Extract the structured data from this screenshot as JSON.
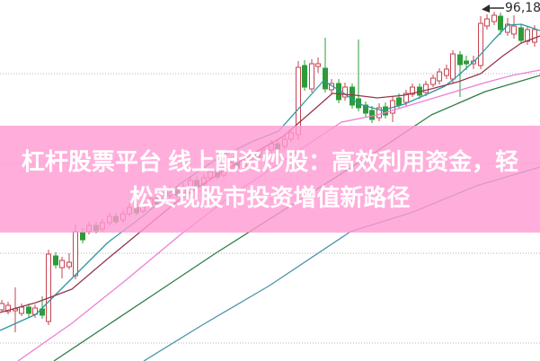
{
  "banner": {
    "full_title": "杠杆股票平台 线上配资炒股：高效利用资金，轻松实现股市投资增值新路径",
    "line1": "杠杆股票平台 线上配资炒股：高效利用资金，轻",
    "line2": "松实现股市投资增值新路径",
    "overlay_rgba": "rgba(255,154,210,0.8)",
    "text_color": "#ffffff"
  },
  "chart_data": {
    "type": "candlestick",
    "price_label": "96,18",
    "price_label_color": "#2b2b2b",
    "grid_color": "#b5b5b5",
    "gridline_prices": [
      90,
      80,
      70,
      60
    ],
    "legend_position": "none",
    "axes_visible": false,
    "candles": {
      "up_color": "#c5434f",
      "down_color": "#2d9b38",
      "values": [
        [
          2,
          63.7,
          64.8,
          63.4,
          64.4
        ],
        [
          9,
          63.5,
          64.6,
          63.2,
          64.2
        ],
        [
          17,
          63.6,
          66.2,
          61.2,
          63.8
        ],
        [
          24,
          63.3,
          64.4,
          63.0,
          64.0
        ],
        [
          32,
          64.0,
          64.4,
          62.9,
          63.3
        ],
        [
          39,
          63.2,
          64.3,
          62.8,
          63.9
        ],
        [
          47,
          63.8,
          65.2,
          62.7,
          63.1
        ],
        [
          54,
          62.4,
          70.4,
          62.0,
          69.9
        ],
        [
          62,
          69.7,
          70.1,
          68.3,
          68.7
        ],
        [
          69,
          68.4,
          69.6,
          67.2,
          69.2
        ],
        [
          77,
          68.5,
          70.0,
          68.2,
          69.0
        ],
        [
          84,
          67.5,
          73.2,
          67.1,
          72.4
        ],
        [
          92,
          72.3,
          72.8,
          71.1,
          71.5
        ],
        [
          99,
          72.4,
          73.5,
          72.1,
          73.1
        ],
        [
          107,
          73.1,
          73.5,
          72.2,
          72.5
        ],
        [
          114,
          72.7,
          73.8,
          72.4,
          73.4
        ],
        [
          122,
          73.4,
          74.5,
          73.1,
          74.1
        ],
        [
          129,
          74.1,
          74.5,
          73.2,
          73.5
        ],
        [
          137,
          73.7,
          74.8,
          73.4,
          74.4
        ],
        [
          144,
          74.4,
          75.5,
          74.1,
          75.1
        ],
        [
          152,
          75.1,
          75.5,
          74.2,
          74.5
        ],
        [
          159,
          74.7,
          75.8,
          74.4,
          75.4
        ],
        [
          167,
          75.4,
          76.5,
          75.1,
          76.1
        ],
        [
          174,
          76.1,
          76.5,
          75.2,
          75.5
        ],
        [
          182,
          75.7,
          76.8,
          75.4,
          76.4
        ],
        [
          189,
          76.4,
          77.5,
          76.1,
          77.1
        ],
        [
          197,
          77.1,
          77.5,
          76.2,
          76.5
        ],
        [
          204,
          76.7,
          77.8,
          76.4,
          77.4
        ],
        [
          212,
          77.4,
          78.5,
          77.1,
          78.1
        ],
        [
          219,
          78.1,
          78.5,
          77.2,
          77.5
        ],
        [
          227,
          77.7,
          78.8,
          77.4,
          78.4
        ],
        [
          234,
          78.4,
          79.5,
          78.1,
          79.1
        ],
        [
          242,
          79.1,
          79.5,
          78.2,
          78.5
        ],
        [
          249,
          78.7,
          79.8,
          78.4,
          79.4
        ],
        [
          257,
          79.4,
          80.5,
          79.1,
          80.1
        ],
        [
          264,
          80.1,
          80.5,
          79.2,
          79.5
        ],
        [
          272,
          79.7,
          80.8,
          79.4,
          80.4
        ],
        [
          279,
          80.4,
          81.5,
          80.1,
          81.1
        ],
        [
          287,
          81.1,
          81.5,
          80.2,
          80.5
        ],
        [
          294,
          80.7,
          81.9,
          80.4,
          81.5
        ],
        [
          302,
          81.5,
          82.6,
          81.2,
          82.2
        ],
        [
          309,
          82.2,
          82.6,
          81.3,
          81.6
        ],
        [
          317,
          81.9,
          83.1,
          81.6,
          82.7
        ],
        [
          324,
          82.7,
          83.8,
          82.4,
          83.4
        ],
        [
          332,
          83.2,
          91.4,
          82.6,
          90.7
        ],
        [
          339,
          90.9,
          91.5,
          88.1,
          88.5
        ],
        [
          347,
          88.3,
          91.6,
          87.9,
          91.1
        ],
        [
          354,
          90.8,
          91.8,
          90.1,
          91.1
        ],
        [
          362,
          90.6,
          94.0,
          87.9,
          88.3
        ],
        [
          369,
          88.2,
          89.4,
          87.8,
          88.9
        ],
        [
          377,
          88.9,
          89.4,
          86.7,
          87.1
        ],
        [
          384,
          87.4,
          89.0,
          87.0,
          88.5
        ],
        [
          392,
          88.5,
          88.9,
          86.1,
          86.5
        ],
        [
          399,
          87.2,
          93.8,
          85.8,
          86.2
        ],
        [
          407,
          86.5,
          86.9,
          85.2,
          85.6
        ],
        [
          414,
          85.9,
          86.4,
          84.5,
          84.9
        ],
        [
          422,
          85.1,
          86.7,
          84.7,
          86.2
        ],
        [
          429,
          86.3,
          86.8,
          85.0,
          85.4
        ],
        [
          437,
          85.6,
          87.5,
          84.6,
          87.0
        ],
        [
          444,
          87.3,
          87.8,
          86.1,
          86.5
        ],
        [
          452,
          86.8,
          88.2,
          86.4,
          87.8
        ],
        [
          459,
          87.7,
          88.9,
          87.4,
          88.5
        ],
        [
          467,
          88.5,
          88.9,
          87.2,
          87.6
        ],
        [
          474,
          87.9,
          89.2,
          87.5,
          88.8
        ],
        [
          482,
          88.8,
          89.9,
          88.5,
          89.5
        ],
        [
          489,
          89.2,
          90.6,
          88.8,
          90.2
        ],
        [
          497,
          89.8,
          91.0,
          89.4,
          90.5
        ],
        [
          504,
          89.4,
          92.6,
          89.0,
          92.2
        ],
        [
          512,
          92.1,
          92.5,
          87.4,
          91.0
        ],
        [
          519,
          91.4,
          92.0,
          90.4,
          91.1
        ],
        [
          527,
          91.1,
          92.0,
          90.5,
          91.4
        ],
        [
          535,
          90.9,
          96.4,
          90.5,
          95.6
        ],
        [
          542,
          95.3,
          96.6,
          94.9,
          96.1
        ],
        [
          550,
          95.8,
          96.9,
          95.4,
          96.5
        ],
        [
          557,
          96.4,
          96.8,
          94.3,
          94.9
        ],
        [
          565,
          94.6,
          96.2,
          94.2,
          95.5
        ],
        [
          572,
          94.4,
          96.5,
          93.9,
          95.3
        ],
        [
          580,
          95.1,
          95.5,
          93.3,
          93.7
        ],
        [
          587,
          93.6,
          95.3,
          93.2,
          94.9
        ],
        [
          595,
          93.5,
          95.4,
          93.0,
          94.9
        ]
      ]
    },
    "series": [
      {
        "name": "ma-short-teal",
        "color": "#2d97a0",
        "points": [
          [
            0,
            61.4
          ],
          [
            40,
            63.2
          ],
          [
            80,
            67.2
          ],
          [
            120,
            71.2
          ],
          [
            160,
            74.2
          ],
          [
            200,
            77.7
          ],
          [
            240,
            80.4
          ],
          [
            280,
            82.4
          ],
          [
            310,
            83.6
          ],
          [
            335,
            86.4
          ],
          [
            360,
            89.2
          ],
          [
            380,
            88.0
          ],
          [
            400,
            86.6
          ],
          [
            425,
            85.9
          ],
          [
            450,
            86.6
          ],
          [
            475,
            87.7
          ],
          [
            495,
            88.6
          ],
          [
            510,
            89.8
          ],
          [
            530,
            91.6
          ],
          [
            548,
            93.6
          ],
          [
            565,
            95.4
          ],
          [
            580,
            95.5
          ],
          [
            592,
            95.1
          ],
          [
            601,
            94.8
          ]
        ]
      },
      {
        "name": "ma-mid-maroon",
        "color": "#94384f",
        "points": [
          [
            0,
            63.4
          ],
          [
            40,
            64.5
          ],
          [
            80,
            66.0
          ],
          [
            120,
            69.4
          ],
          [
            160,
            72.7
          ],
          [
            200,
            76.0
          ],
          [
            240,
            78.6
          ],
          [
            280,
            81.0
          ],
          [
            315,
            83.0
          ],
          [
            345,
            85.6
          ],
          [
            370,
            87.8
          ],
          [
            395,
            87.6
          ],
          [
            420,
            87.3
          ],
          [
            450,
            87.6
          ],
          [
            480,
            88.3
          ],
          [
            510,
            89.1
          ],
          [
            535,
            90.0
          ],
          [
            560,
            92.0
          ],
          [
            580,
            93.4
          ],
          [
            601,
            94.2
          ]
        ]
      },
      {
        "name": "ma-magenta",
        "color": "#ec7fd4",
        "points": [
          [
            20,
            58.0
          ],
          [
            80,
            62.2
          ],
          [
            140,
            67.0
          ],
          [
            200,
            72.0
          ],
          [
            260,
            76.6
          ],
          [
            320,
            80.6
          ],
          [
            380,
            84.6
          ],
          [
            420,
            85.4
          ],
          [
            460,
            86.6
          ],
          [
            500,
            87.8
          ],
          [
            540,
            89.0
          ],
          [
            570,
            89.8
          ],
          [
            601,
            90.4
          ]
        ]
      },
      {
        "name": "ma-dark-green",
        "color": "#2f7d45",
        "points": [
          [
            60,
            58.0
          ],
          [
            120,
            62.0
          ],
          [
            180,
            66.0
          ],
          [
            240,
            70.0
          ],
          [
            300,
            73.8
          ],
          [
            360,
            77.6
          ],
          [
            420,
            81.4
          ],
          [
            480,
            85.4
          ],
          [
            540,
            88.0
          ],
          [
            601,
            89.8
          ]
        ]
      },
      {
        "name": "ma-long-blue",
        "color": "#4a94ad",
        "points": [
          [
            160,
            58.0
          ],
          [
            225,
            62.0
          ],
          [
            300,
            66.4
          ],
          [
            390,
            72.4
          ],
          [
            460,
            74.6
          ],
          [
            530,
            77.5
          ],
          [
            601,
            79.6
          ]
        ]
      }
    ]
  }
}
